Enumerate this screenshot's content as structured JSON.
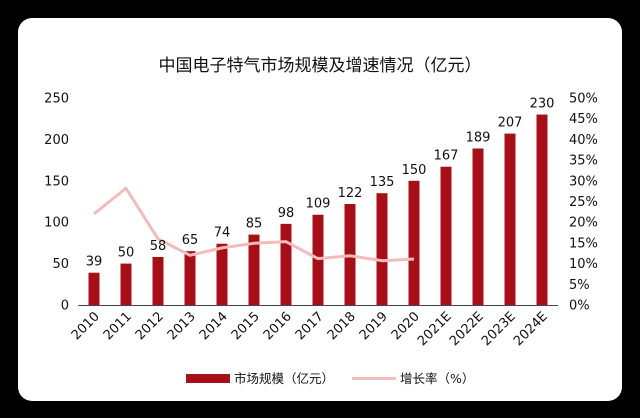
{
  "chart_data": {
    "type": "bar+line",
    "title": "中国电子特气市场规模及增速情况（亿元）",
    "categories": [
      "2010",
      "2011",
      "2012",
      "2013",
      "2014",
      "2015",
      "2016",
      "2017",
      "2018",
      "2019",
      "2020",
      "2021E",
      "2022E",
      "2023E",
      "2024E"
    ],
    "series": [
      {
        "name": "市场规模（亿元）",
        "type": "bar",
        "axis": "left",
        "color": "#A50F15",
        "values": [
          39,
          50,
          58,
          65,
          74,
          85,
          98,
          109,
          122,
          135,
          150,
          167,
          189,
          207,
          230
        ],
        "labels": [
          "39",
          "50",
          "58",
          "65",
          "74",
          "85",
          "98",
          "109",
          "122",
          "135",
          "150",
          "167",
          "189",
          "207",
          "230"
        ]
      },
      {
        "name": "增长率（%）",
        "type": "line",
        "axis": "right",
        "color": "#F4BBBB",
        "values": [
          22,
          28.2,
          16,
          12,
          13.8,
          14.9,
          15.3,
          11.2,
          11.9,
          10.7,
          11.1,
          null,
          null,
          null,
          null
        ]
      }
    ],
    "y_left": {
      "min": 0,
      "max": 250,
      "ticks": [
        "0",
        "50",
        "100",
        "150",
        "200",
        "250"
      ]
    },
    "y_right": {
      "min": 0,
      "max": 50,
      "ticks": [
        "0%",
        "5%",
        "10%",
        "15%",
        "20%",
        "25%",
        "30%",
        "35%",
        "40%",
        "45%",
        "50%"
      ]
    },
    "legend_position": "bottom",
    "grid": false
  }
}
